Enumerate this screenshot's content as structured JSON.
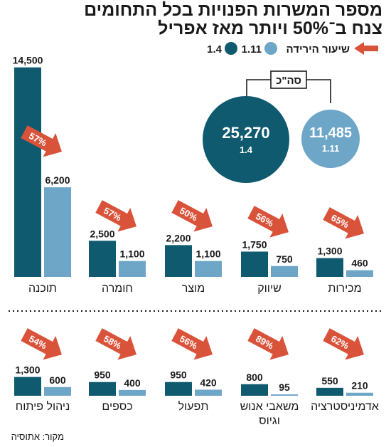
{
  "title_line1": "מספר המשרות הפנויות בכל התחומים",
  "title_line2": "צנח ב־50% ויותר מאז אפריל",
  "legend": {
    "date_a": "1.4",
    "date_b": "1.11",
    "drop_label": "שיעור הירידה"
  },
  "total": {
    "label": "סה\"כ",
    "value_a": "25,270",
    "value_b": "11,485",
    "date_a": "1.4",
    "date_b": "1.11"
  },
  "source": "מקור: אתוסיה",
  "colors": {
    "date_a": "#0f5a6e",
    "date_b": "#6ea6c8",
    "arrow": "#d9533a",
    "text": "#1a1a1a"
  },
  "chart_data": [
    {
      "type": "bar",
      "group": "top-row",
      "series": [
        {
          "name": "1.4",
          "values": [
            14500,
            2500,
            2200,
            1750,
            1300
          ]
        },
        {
          "name": "1.11",
          "values": [
            6200,
            1100,
            1100,
            750,
            460
          ]
        }
      ],
      "categories": [
        "תוכנה",
        "חומרה",
        "מוצר",
        "שיווק",
        "מכירות"
      ],
      "value_labels_a": [
        "14,500",
        "2,500",
        "2,200",
        "1,750",
        "1,300"
      ],
      "value_labels_b": [
        "6,200",
        "1,100",
        "1,100",
        "750",
        "460"
      ],
      "drop_rates": [
        "57%",
        "57%",
        "50%",
        "56%",
        "65%"
      ]
    },
    {
      "type": "bar",
      "group": "bottom-row",
      "series": [
        {
          "name": "1.4",
          "values": [
            1300,
            950,
            950,
            800,
            550
          ]
        },
        {
          "name": "1.11",
          "values": [
            600,
            400,
            420,
            95,
            210
          ]
        }
      ],
      "categories": [
        "ניהול פיתוח",
        "כספים",
        "תפעול",
        "משאבי אנוש וגיוס",
        "אדמיניסטרציה"
      ],
      "value_labels_a": [
        "1,300",
        "950",
        "950",
        "800",
        "550"
      ],
      "value_labels_b": [
        "600",
        "400",
        "420",
        "95",
        "210"
      ],
      "drop_rates": [
        "54%",
        "58%",
        "56%",
        "89%",
        "62%"
      ]
    }
  ]
}
